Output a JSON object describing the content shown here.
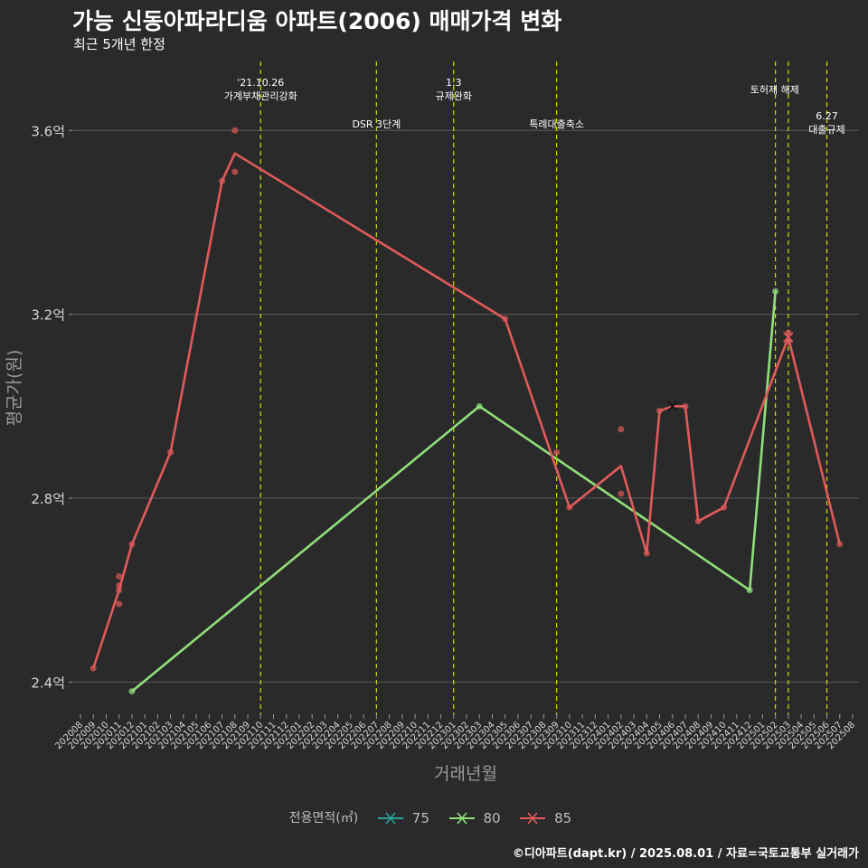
{
  "title": "가능 신동아파라디움 아파트(2006) 매매가격 변화",
  "subtitle": "최근 5개년 한정",
  "caption": "©디아파트(dapt.kr) / 2025.08.01 / 자료=국토교통부 실거래가",
  "colors": {
    "background": "#2b2a2b",
    "grid": "#5b5a5b",
    "event_line": "#d6d900",
    "s75": "#2aa198",
    "s80": "#8fe07a",
    "s85": "#e05a5a"
  },
  "legend": {
    "title": "전용면적(㎡)",
    "items": [
      "75",
      "80",
      "85"
    ]
  },
  "chart_data": {
    "type": "line",
    "xlabel": "거래년월",
    "ylabel": "평균가(원)",
    "ylim": [
      2.33,
      3.75
    ],
    "y_ticks": [
      2.4,
      2.8,
      3.2,
      3.6
    ],
    "y_tick_labels": [
      "2.4억",
      "2.8억",
      "3.2억",
      "3.6억"
    ],
    "grid": true,
    "legend_position": "bottom",
    "x_categories": [
      "202008",
      "202009",
      "202010",
      "202011",
      "202012",
      "202101",
      "202102",
      "202103",
      "202104",
      "202105",
      "202106",
      "202107",
      "202108",
      "202109",
      "202110",
      "202111",
      "202112",
      "202201",
      "202202",
      "202203",
      "202204",
      "202205",
      "202206",
      "202207",
      "202208",
      "202209",
      "202210",
      "202211",
      "202212",
      "202301",
      "202302",
      "202303",
      "202304",
      "202305",
      "202306",
      "202307",
      "202308",
      "202309",
      "202310",
      "202311",
      "202312",
      "202401",
      "202402",
      "202403",
      "202404",
      "202405",
      "202406",
      "202407",
      "202408",
      "202409",
      "202410",
      "202411",
      "202412",
      "202501",
      "202502",
      "202503",
      "202504",
      "202505",
      "202506",
      "202507",
      "202508"
    ],
    "events": [
      {
        "x": "202110",
        "label": "'21.10.26\n가계부채관리강화",
        "tier": "top"
      },
      {
        "x": "202207",
        "label": "DSR 3단계",
        "tier": "low"
      },
      {
        "x": "202301",
        "label": "1.3\n규제완화",
        "tier": "top"
      },
      {
        "x": "202309",
        "label": "특례대출축소",
        "tier": "low"
      },
      {
        "x": "202502",
        "label": "",
        "tier": "mid"
      },
      {
        "x": "202503",
        "label": "토허제 해제",
        "tier": "mid"
      },
      {
        "x": "202506",
        "label": "6.27\n대출규제",
        "tier": "right"
      }
    ],
    "series": [
      {
        "name": "75",
        "line": [],
        "points": []
      },
      {
        "name": "80",
        "line": [
          [
            "202012",
            2.38
          ],
          [
            "202303",
            3.0
          ],
          [
            "202412",
            2.6
          ],
          [
            "202502",
            3.25
          ]
        ],
        "points": [
          [
            "202012",
            2.38
          ],
          [
            "202303",
            3.0
          ],
          [
            "202412",
            2.6
          ],
          [
            "202502",
            3.25
          ]
        ]
      },
      {
        "name": "85",
        "line": [
          [
            "202009",
            2.43
          ],
          [
            "202011",
            2.6
          ],
          [
            "202012",
            2.7
          ],
          [
            "202103",
            2.9
          ],
          [
            "202107",
            3.49
          ],
          [
            "202108",
            3.55
          ],
          [
            "202305",
            3.19
          ],
          [
            "202310",
            2.78
          ],
          [
            "202402",
            2.87
          ],
          [
            "202404",
            2.68
          ],
          [
            "202405",
            2.99
          ],
          [
            "202406",
            3.0
          ],
          [
            "202407",
            3.0
          ],
          [
            "202408",
            2.75
          ],
          [
            "202410",
            2.78
          ],
          [
            "202503",
            3.15
          ],
          [
            "202507",
            2.7
          ]
        ],
        "points": [
          [
            "202009",
            2.43
          ],
          [
            "202011",
            2.57
          ],
          [
            "202011",
            2.6
          ],
          [
            "202011",
            2.61
          ],
          [
            "202011",
            2.63
          ],
          [
            "202012",
            2.7
          ],
          [
            "202103",
            2.9
          ],
          [
            "202107",
            3.49
          ],
          [
            "202108",
            3.6
          ],
          [
            "202108",
            3.51
          ],
          [
            "202305",
            3.19
          ],
          [
            "202309",
            2.9
          ],
          [
            "202310",
            2.78
          ],
          [
            "202402",
            2.95
          ],
          [
            "202402",
            2.81
          ],
          [
            "202404",
            2.68
          ],
          [
            "202405",
            2.99
          ],
          [
            "202407",
            3.0
          ],
          [
            "202408",
            2.75
          ],
          [
            "202410",
            2.78
          ],
          [
            "202503",
            3.14
          ],
          [
            "202503",
            3.16
          ],
          [
            "202507",
            2.7
          ]
        ],
        "markers_x": [
          [
            "202406",
            3.0
          ],
          [
            "202503",
            3.15
          ]
        ]
      }
    ]
  }
}
